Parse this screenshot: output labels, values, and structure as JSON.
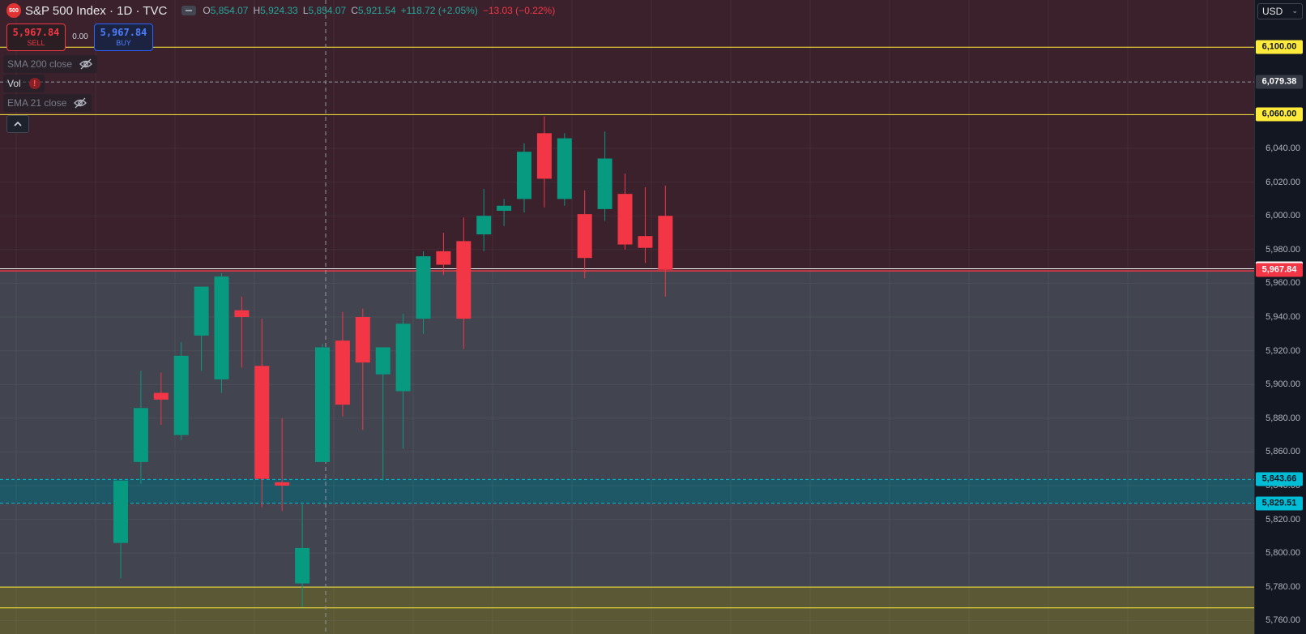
{
  "header": {
    "logo_text": "500",
    "symbol": "S&P 500 Index · 1D · TVC",
    "ohlc": {
      "o_label": "O",
      "o": "5,854.07",
      "h_label": "H",
      "h": "5,924.33",
      "l_label": "L",
      "l": "5,854.07",
      "c_label": "C",
      "c": "5,921.54",
      "change": "+118.72 (+2.05%)",
      "change2": "−13.03 (−0.22%)"
    }
  },
  "trade": {
    "sell_price": "5,967.84",
    "sell_label": "SELL",
    "spread": "0.00",
    "buy_price": "5,967.84",
    "buy_label": "BUY"
  },
  "indicators": [
    {
      "name": "SMA 200 close",
      "state": "hidden"
    },
    {
      "name": "Vol",
      "state": "error"
    },
    {
      "name": "EMA 21 close",
      "state": "hidden"
    }
  ],
  "currency": "USD",
  "axis": {
    "ticks": [
      "6,040.00",
      "6,020.00",
      "6,000.00",
      "5,980.00",
      "5,960.00",
      "5,940.00",
      "5,920.00",
      "5,900.00",
      "5,880.00",
      "5,860.00",
      "5,840.00",
      "5,820.00",
      "5,800.00",
      "5,780.00",
      "5,760.00"
    ],
    "tick_values": [
      6040,
      6020,
      6000,
      5980,
      5960,
      5940,
      5920,
      5900,
      5880,
      5860,
      5840,
      5820,
      5800,
      5780,
      5760
    ]
  },
  "price_tags": [
    {
      "id": "l6100",
      "value": 6100.0,
      "label": "6,100.00",
      "bg": "#ffeb3b",
      "fg": "#131722"
    },
    {
      "id": "l6079",
      "value": 6079.38,
      "label": "6,079.38",
      "bg": "#363a45",
      "fg": "#ffffff"
    },
    {
      "id": "l6060",
      "value": 6060.0,
      "label": "6,060.00",
      "bg": "#ffeb3b",
      "fg": "#131722"
    },
    {
      "id": "l5968",
      "value": 5968.61,
      "label": "5,968.61",
      "bg": "#ffffff",
      "fg": "#131722"
    },
    {
      "id": "l5967",
      "value": 5967.84,
      "label": "5,967.84",
      "bg": "#f23645",
      "fg": "#ffffff"
    },
    {
      "id": "l5843",
      "value": 5843.66,
      "label": "5,843.66",
      "bg": "#00bcd4",
      "fg": "#131722"
    },
    {
      "id": "l5829",
      "value": 5829.51,
      "label": "5,829.51",
      "bg": "#00bcd4",
      "fg": "#131722"
    }
  ],
  "colors": {
    "up": "#089981",
    "down": "#f23645",
    "zone_upper": "#3a212c",
    "zone_mid": "#42454f",
    "zone_cyan": "#1e5866",
    "zone_yellow": "#5a5835",
    "yellow_line": "#ffeb3b",
    "cyan_line": "#00bcd4"
  },
  "chart_data": {
    "type": "candlestick",
    "timeframe": "1D",
    "ylim": [
      5752,
      6128
    ],
    "horizontal_levels": [
      6100.0,
      6079.38,
      6060.0,
      5968.61,
      5967.84,
      5843.66,
      5829.51,
      5779.8,
      5767.5
    ],
    "candles": [
      {
        "o": 5806,
        "h": 5843,
        "l": 5785,
        "c": 5843
      },
      {
        "o": 5854,
        "h": 5908,
        "l": 5841,
        "c": 5886
      },
      {
        "o": 5895,
        "h": 5907,
        "l": 5876,
        "c": 5891
      },
      {
        "o": 5870,
        "h": 5925,
        "l": 5867,
        "c": 5917
      },
      {
        "o": 5929,
        "h": 5958,
        "l": 5908,
        "c": 5958
      },
      {
        "o": 5903,
        "h": 5966,
        "l": 5895,
        "c": 5964
      },
      {
        "o": 5944,
        "h": 5952,
        "l": 5910,
        "c": 5940
      },
      {
        "o": 5911,
        "h": 5939,
        "l": 5827,
        "c": 5844
      },
      {
        "o": 5842,
        "h": 5880,
        "l": 5825,
        "c": 5840
      },
      {
        "o": 5782,
        "h": 5829,
        "l": 5768,
        "c": 5803
      },
      {
        "o": 5854,
        "h": 5924,
        "l": 5854,
        "c": 5922
      },
      {
        "o": 5926,
        "h": 5943,
        "l": 5881,
        "c": 5888
      },
      {
        "o": 5940,
        "h": 5945,
        "l": 5873,
        "c": 5913
      },
      {
        "o": 5906,
        "h": 5922,
        "l": 5843,
        "c": 5922
      },
      {
        "o": 5896,
        "h": 5942,
        "l": 5862,
        "c": 5936
      },
      {
        "o": 5939,
        "h": 5979,
        "l": 5930,
        "c": 5976
      },
      {
        "o": 5979,
        "h": 5990,
        "l": 5965,
        "c": 5971
      },
      {
        "o": 5985,
        "h": 5999,
        "l": 5921,
        "c": 5939
      },
      {
        "o": 5989,
        "h": 6016,
        "l": 5979,
        "c": 6000
      },
      {
        "o": 6003,
        "h": 6010,
        "l": 5994,
        "c": 6006
      },
      {
        "o": 6010,
        "h": 6043,
        "l": 6002,
        "c": 6038
      },
      {
        "o": 6049,
        "h": 6059,
        "l": 6005,
        "c": 6022
      },
      {
        "o": 6010,
        "h": 6049,
        "l": 6006,
        "c": 6046
      },
      {
        "o": 6001,
        "h": 6015,
        "l": 5963,
        "c": 5975
      },
      {
        "o": 6004,
        "h": 6050,
        "l": 5997,
        "c": 6034
      },
      {
        "o": 6013,
        "h": 6025,
        "l": 5980,
        "c": 5983
      },
      {
        "o": 5988,
        "h": 6017,
        "l": 5972,
        "c": 5981
      },
      {
        "o": 6000,
        "h": 6018,
        "l": 5952,
        "c": 5968
      }
    ]
  }
}
